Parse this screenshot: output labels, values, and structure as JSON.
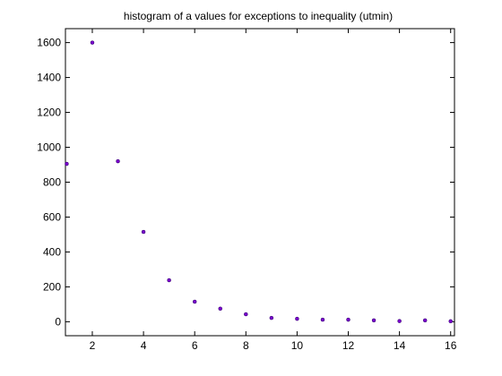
{
  "chart_data": {
    "type": "scatter",
    "title": "histogram of a values for exceptions to inequality (utmin)",
    "xlabel": "",
    "ylabel": "",
    "xlim": [
      0.95,
      16.15
    ],
    "ylim": [
      -80,
      1680
    ],
    "grid": false,
    "marker_color": "#7a00cc",
    "x_ticks": [
      2,
      4,
      6,
      8,
      10,
      12,
      14,
      16
    ],
    "y_ticks": [
      0,
      200,
      400,
      600,
      800,
      1000,
      1200,
      1400,
      1600
    ],
    "series": [
      {
        "x": [
          1,
          2,
          3,
          4,
          5,
          6,
          7,
          8,
          9,
          10,
          11,
          12,
          13,
          14,
          15,
          16
        ],
        "y": [
          905,
          1600,
          920,
          515,
          238,
          115,
          75,
          43,
          22,
          17,
          12,
          12,
          8,
          4,
          8,
          3
        ]
      }
    ]
  }
}
